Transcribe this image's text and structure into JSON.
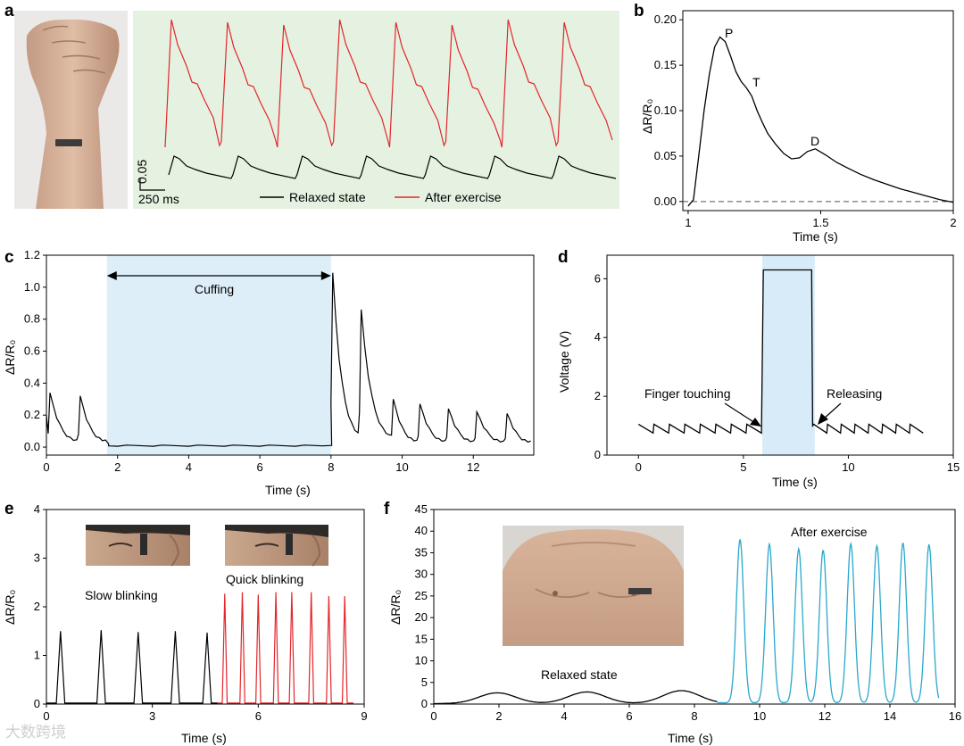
{
  "colors": {
    "relaxed": "#000000",
    "exercise": "#e3262b",
    "cyan": "#29a8cc",
    "shade_a": "#e5f2e2",
    "shade_c": "#ddeef9",
    "shade_d": "#d8ebf8",
    "skin": "#caa28a"
  },
  "watermark": "大数跨境",
  "chart_data": [
    {
      "id": "a",
      "panel_label": "a",
      "type": "line",
      "title": "",
      "scale_bar": {
        "y_label": "0.05",
        "x_label": "250 ms"
      },
      "legend": [
        "Relaxed state",
        "After exercise"
      ],
      "series": [
        {
          "name": "After exercise",
          "beats": 8,
          "shape": "rapid rise to peak then decay with notch"
        },
        {
          "name": "Relaxed state",
          "beats": 7,
          "shape": "small peak then decay"
        }
      ]
    },
    {
      "id": "b",
      "panel_label": "b",
      "type": "line",
      "xlabel": "Time (s)",
      "ylabel": "ΔR/R₀",
      "xlim": [
        0.98,
        2.0
      ],
      "ylim": [
        -0.01,
        0.21
      ],
      "xticks": [
        "1",
        "1.5",
        "2"
      ],
      "yticks": [
        "0.00",
        "0.05",
        "0.10",
        "0.15",
        "0.20"
      ],
      "annotations": [
        "P",
        "T",
        "D"
      ],
      "baseline": 0.0,
      "x": [
        1.0,
        1.02,
        1.04,
        1.06,
        1.08,
        1.1,
        1.12,
        1.14,
        1.16,
        1.18,
        1.2,
        1.22,
        1.24,
        1.26,
        1.28,
        1.3,
        1.33,
        1.36,
        1.39,
        1.42,
        1.45,
        1.48,
        1.52,
        1.56,
        1.6,
        1.65,
        1.7,
        1.75,
        1.8,
        1.85,
        1.9,
        1.95,
        2.0
      ],
      "values": [
        -0.005,
        0.002,
        0.05,
        0.1,
        0.14,
        0.17,
        0.181,
        0.176,
        0.16,
        0.143,
        0.132,
        0.125,
        0.116,
        0.1,
        0.087,
        0.075,
        0.063,
        0.053,
        0.047,
        0.048,
        0.055,
        0.058,
        0.051,
        0.043,
        0.037,
        0.03,
        0.024,
        0.019,
        0.014,
        0.01,
        0.006,
        0.002,
        -0.001
      ]
    },
    {
      "id": "c",
      "panel_label": "c",
      "type": "line",
      "xlabel": "Time (s)",
      "ylabel": "ΔR/R₀",
      "xlim": [
        0,
        13.7
      ],
      "ylim": [
        -0.05,
        1.2
      ],
      "xticks": [
        "0",
        "2",
        "4",
        "6",
        "8",
        "10",
        "12"
      ],
      "yticks": [
        "0.0",
        "0.2",
        "0.4",
        "0.6",
        "0.8",
        "1.0",
        "1.2"
      ],
      "annotations": [
        "Cuffing"
      ],
      "shaded_range": [
        1.7,
        8.0
      ],
      "peaks": [
        {
          "t": 0.1,
          "v": 0.34
        },
        {
          "t": 0.95,
          "v": 0.32
        },
        {
          "t": 1.75,
          "v": 0.08
        },
        {
          "t": 8.05,
          "v": 1.09
        },
        {
          "t": 8.85,
          "v": 0.86
        },
        {
          "t": 9.75,
          "v": 0.3
        },
        {
          "t": 10.5,
          "v": 0.27
        },
        {
          "t": 11.3,
          "v": 0.24
        },
        {
          "t": 12.1,
          "v": 0.22
        },
        {
          "t": 12.95,
          "v": 0.21
        }
      ]
    },
    {
      "id": "d",
      "panel_label": "d",
      "type": "line",
      "xlabel": "Time (s)",
      "ylabel": "Voltage (V)",
      "xlim": [
        -1.5,
        15
      ],
      "ylim": [
        0,
        6.8
      ],
      "xticks": [
        "0",
        "5",
        "10",
        "15"
      ],
      "yticks": [
        "0",
        "2",
        "4",
        "6"
      ],
      "annotations": [
        "Finger touching",
        "Releasing"
      ],
      "shaded_range": [
        5.9,
        8.4
      ],
      "baseline_v": 0.8,
      "pulse_v": 6.3,
      "pulse_range": [
        5.9,
        8.3
      ],
      "x_range": [
        0,
        13.6
      ],
      "pulse_count_before": 8,
      "pulse_count_after": 8
    },
    {
      "id": "e",
      "panel_label": "e",
      "type": "line",
      "xlabel": "Time (s)",
      "ylabel": "ΔR/R₀",
      "xlim": [
        0,
        9
      ],
      "ylim": [
        0,
        4
      ],
      "xticks": [
        "0",
        "3",
        "6",
        "9"
      ],
      "yticks": [
        "0",
        "1",
        "2",
        "3",
        "4"
      ],
      "annotations": [
        "Slow blinking",
        "Quick blinking"
      ],
      "series": [
        {
          "name": "Slow blinking",
          "peaks_t": [
            0.4,
            1.55,
            2.6,
            3.65,
            4.55
          ],
          "peaks_v": [
            1.5,
            1.52,
            1.48,
            1.5,
            1.47
          ]
        },
        {
          "name": "Quick blinking",
          "peaks_t": [
            5.05,
            5.55,
            6.0,
            6.5,
            6.95,
            7.5,
            8.0,
            8.45
          ],
          "peaks_v": [
            2.27,
            2.3,
            2.25,
            2.3,
            2.3,
            2.3,
            2.22,
            2.22
          ]
        }
      ]
    },
    {
      "id": "f",
      "panel_label": "f",
      "type": "line",
      "xlabel": "Time (s)",
      "ylabel": "ΔR/R₀",
      "xlim": [
        0,
        16
      ],
      "ylim": [
        0,
        45
      ],
      "xticks": [
        "0",
        "2",
        "4",
        "6",
        "8",
        "10",
        "12",
        "14",
        "16"
      ],
      "yticks": [
        "0",
        "5",
        "10",
        "15",
        "20",
        "25",
        "30",
        "35",
        "40",
        "45"
      ],
      "annotations": [
        "Relaxed state",
        "After exercise"
      ],
      "series": [
        {
          "name": "Relaxed state",
          "peaks_t": [
            1.95,
            4.7,
            7.6
          ],
          "peaks_v": [
            2.5,
            2.7,
            3.0
          ]
        },
        {
          "name": "After exercise",
          "peaks_t": [
            9.4,
            10.3,
            11.2,
            11.95,
            12.8,
            13.6,
            14.4,
            15.2
          ],
          "peaks_v": [
            37.8,
            36.7,
            35.6,
            35.3,
            36.8,
            36.3,
            37.0,
            36.6
          ]
        }
      ]
    }
  ]
}
